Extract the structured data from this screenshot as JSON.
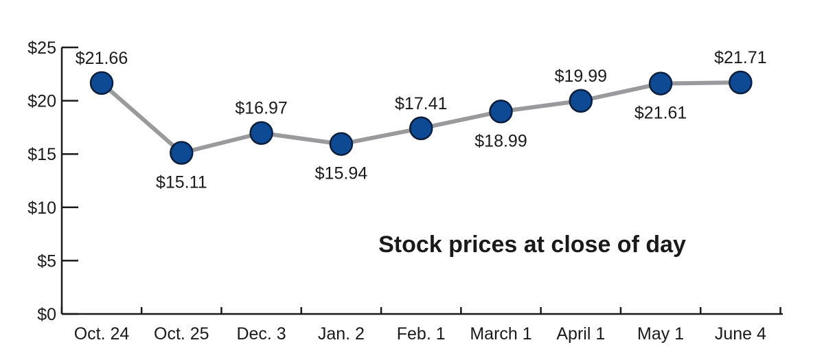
{
  "chart_data": {
    "type": "line",
    "title": "Stock prices at close of day",
    "xlabel": "",
    "ylabel": "",
    "categories": [
      "Oct. 24",
      "Oct. 25",
      "Dec. 3",
      "Jan. 2",
      "Feb. 1",
      "March 1",
      "April 1",
      "May 1",
      "June 4"
    ],
    "values": [
      21.66,
      15.11,
      16.97,
      15.94,
      17.41,
      18.99,
      19.99,
      21.61,
      21.71
    ],
    "value_labels": [
      "$21.66",
      "$15.11",
      "$16.97",
      "$15.94",
      "$17.41",
      "$18.99",
      "$19.99",
      "$21.61",
      "$21.71"
    ],
    "label_positions": [
      "above",
      "below",
      "above",
      "below",
      "above",
      "below",
      "above",
      "below",
      "above"
    ],
    "ylim": [
      0,
      25
    ],
    "yticks": [
      0,
      5,
      10,
      15,
      20,
      25
    ],
    "ytick_labels": [
      "$0",
      "$5",
      "$10",
      "$15",
      "$20",
      "$25"
    ],
    "grid": false,
    "colors": {
      "line": "#9a9a9d",
      "marker_fill": "#0d4a93",
      "marker_stroke": "#0a1e3c",
      "axis": "#1a1a1a"
    }
  }
}
